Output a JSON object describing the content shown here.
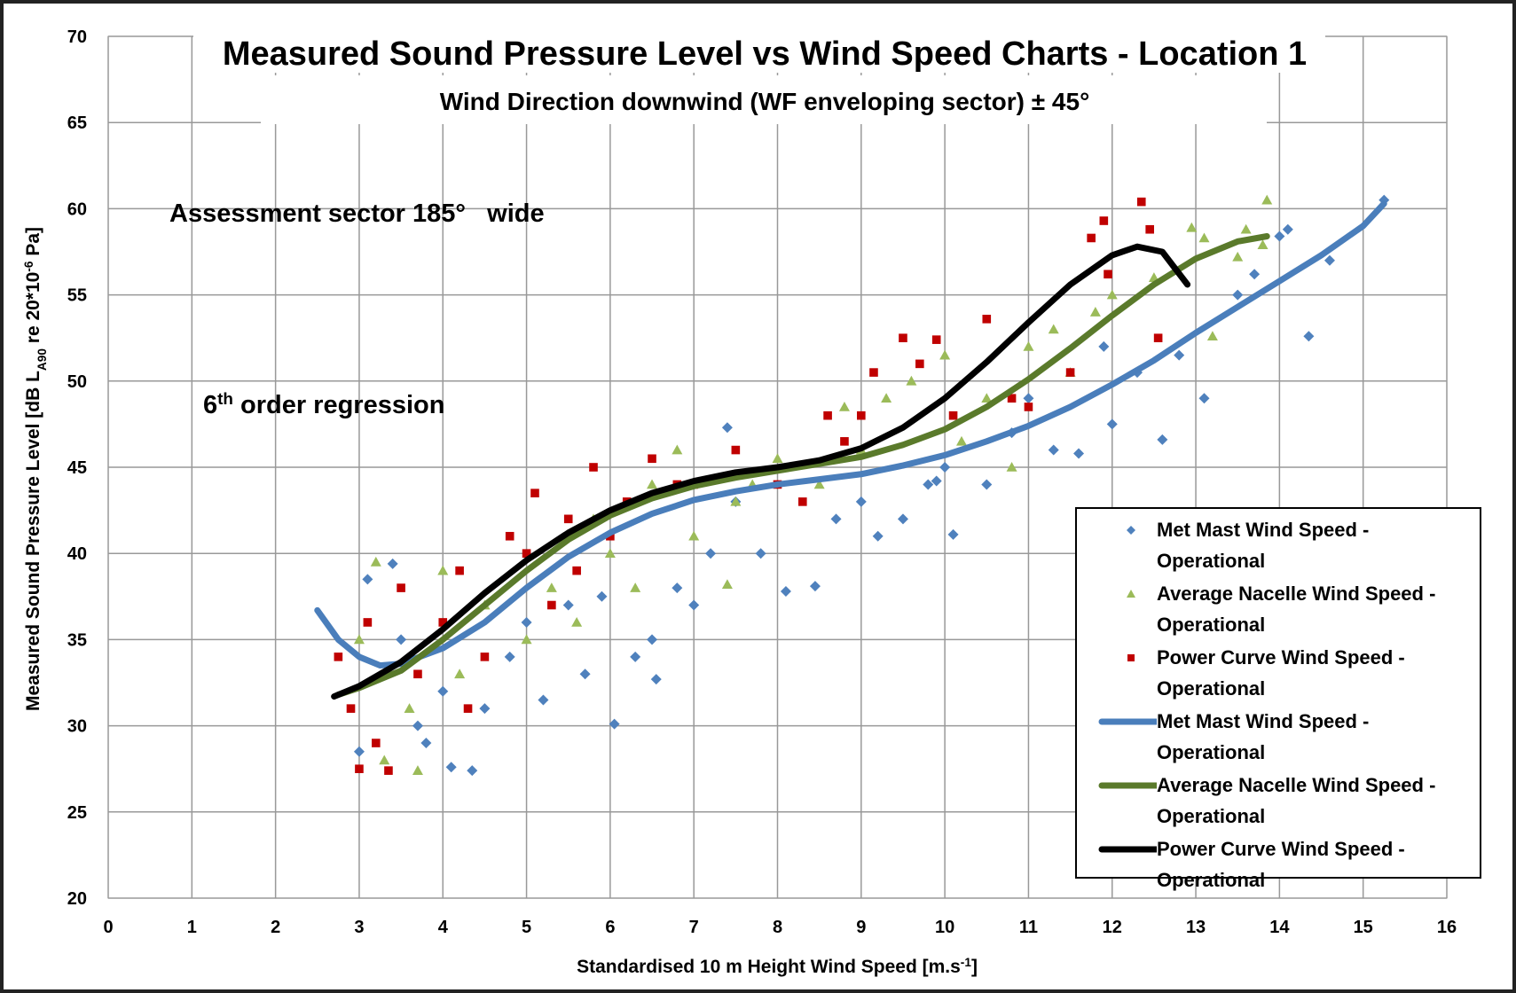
{
  "chart_data": {
    "type": "scatter",
    "title": "Measured Sound Pressure Level vs Wind Speed Charts - Location 1",
    "subtitle": "Wind Direction downwind (WF enveloping sector) ± 45°",
    "annotations": [
      "Assessment sector 185°   wide",
      [
        "6",
        "th",
        " order regression"
      ]
    ],
    "xlabel": [
      "Standardised 10 m Height Wind Speed [m.s",
      "-1",
      "]"
    ],
    "ylabel": [
      "Measured  Sound Pressure Level [dB L",
      "A90",
      " re 20*10",
      "-6",
      " Pa]"
    ],
    "xlim": [
      0,
      16
    ],
    "xticks": [
      0,
      1,
      2,
      3,
      4,
      5,
      6,
      7,
      8,
      9,
      10,
      11,
      12,
      13,
      14,
      15,
      16
    ],
    "ylim": [
      20,
      70
    ],
    "yticks": [
      20,
      25,
      30,
      35,
      40,
      45,
      50,
      55,
      60,
      65,
      70
    ],
    "grid": true,
    "legend": "lower right",
    "series": [
      {
        "name": "Met Mast Wind Speed - Operational",
        "kind": "marker",
        "marker": "diamond",
        "color": "#4f81bd",
        "x": [
          3,
          3.1,
          3.4,
          3.5,
          3.7,
          3.8,
          4,
          4.1,
          4.35,
          4.5,
          4.8,
          5,
          5.2,
          5.5,
          5.7,
          5.9,
          6.05,
          6.3,
          6.5,
          6.55,
          6.8,
          7,
          7.2,
          7.5,
          7.8,
          8.1,
          8.45,
          8.7,
          9,
          9.2,
          9.5,
          9.8,
          10,
          10.1,
          10.5,
          10.8,
          11,
          11.3,
          11.6,
          12,
          12.3,
          12.6,
          12.8,
          13.1,
          13.5,
          13.7,
          14,
          14.1,
          14.35,
          14.6,
          15.25,
          7.4,
          9.9,
          11.9
        ],
        "values": [
          28.5,
          38.5,
          39.4,
          35,
          30,
          29,
          32,
          27.6,
          27.4,
          31,
          34,
          36,
          31.5,
          37,
          33,
          37.5,
          30.1,
          34,
          35,
          32.7,
          38,
          37,
          40,
          43,
          40,
          37.8,
          38.1,
          42,
          43,
          41,
          42,
          44,
          45,
          41.1,
          44,
          47,
          49,
          46,
          45.8,
          47.5,
          50.5,
          46.6,
          51.5,
          49,
          55,
          56.2,
          58.4,
          58.8,
          52.6,
          57,
          60.5,
          47.3,
          44.2,
          52
        ]
      },
      {
        "name": "Average Nacelle Wind Speed - Operational",
        "kind": "marker",
        "marker": "triangle",
        "color": "#9bbb59",
        "x": [
          3,
          3.2,
          3.3,
          3.7,
          3.6,
          4,
          4.2,
          4.5,
          5,
          5.3,
          5.6,
          6,
          6.3,
          6.8,
          7,
          7.4,
          7.5,
          8,
          8.5,
          8.8,
          9,
          9.3,
          9.6,
          10,
          10.2,
          10.5,
          10.8,
          11,
          11.3,
          11.5,
          11.8,
          12,
          12.5,
          12.95,
          13.1,
          13.2,
          13.5,
          13.6,
          13.85,
          13.8,
          5.8,
          6.5,
          7.7
        ],
        "values": [
          35,
          39.5,
          28,
          27.4,
          31,
          39,
          33,
          37,
          35,
          38,
          36,
          40,
          38,
          46,
          41,
          38.2,
          43,
          45.5,
          44,
          48.5,
          46,
          49,
          50,
          51.5,
          46.5,
          49,
          45,
          52,
          53,
          50.5,
          54,
          55,
          56,
          58.9,
          58.3,
          52.6,
          57.2,
          58.8,
          60.5,
          57.9,
          42,
          44,
          44
        ]
      },
      {
        "name": "Power Curve Wind Speed - Operational",
        "kind": "marker",
        "marker": "square",
        "color": "#c00000",
        "x": [
          2.75,
          2.9,
          3,
          3.1,
          3.2,
          3.35,
          3.5,
          3.7,
          4,
          4.2,
          4.5,
          4.8,
          5,
          5.1,
          5.3,
          5.5,
          5.8,
          6,
          6.2,
          6.5,
          6.8,
          7,
          7.5,
          8,
          8.3,
          8.6,
          8.8,
          9,
          9.15,
          9.5,
          9.7,
          9.9,
          10.1,
          10.5,
          10.8,
          11,
          11.5,
          11.75,
          11.9,
          11.95,
          12.35,
          12.45,
          12.55,
          5.6,
          4.3
        ],
        "values": [
          34,
          31,
          27.5,
          36,
          29,
          27.4,
          38,
          33,
          36,
          39,
          34,
          41,
          40,
          43.5,
          37,
          42,
          45,
          41,
          43,
          45.5,
          44,
          44,
          46,
          44,
          43,
          48,
          46.5,
          48,
          50.5,
          52.5,
          51,
          52.4,
          48,
          53.6,
          49,
          48.5,
          50.5,
          58.3,
          59.3,
          56.2,
          60.4,
          58.8,
          52.5,
          39,
          31
        ]
      },
      {
        "name": "Met Mast Wind Speed - Operational",
        "kind": "line",
        "color": "#4a7ebb",
        "x": [
          2.5,
          2.75,
          3,
          3.25,
          3.5,
          4,
          4.5,
          5,
          5.5,
          6,
          6.5,
          7,
          7.5,
          8,
          8.5,
          9,
          9.5,
          10,
          10.5,
          11,
          11.5,
          12,
          12.5,
          13,
          13.5,
          14,
          14.5,
          15,
          15.25
        ],
        "values": [
          36.7,
          35,
          34,
          33.5,
          33.6,
          34.5,
          36,
          38,
          39.8,
          41.2,
          42.3,
          43.1,
          43.6,
          44,
          44.3,
          44.6,
          45.1,
          45.7,
          46.5,
          47.4,
          48.5,
          49.8,
          51.2,
          52.8,
          54.3,
          55.8,
          57.3,
          59,
          60.3
        ]
      },
      {
        "name": "Average Nacelle Wind Speed - Operational",
        "kind": "line",
        "color": "#5a7a2b",
        "x": [
          2.75,
          3,
          3.5,
          4,
          4.5,
          5,
          5.5,
          6,
          6.5,
          7,
          7.5,
          8,
          8.5,
          9,
          9.5,
          10,
          10.5,
          11,
          11.5,
          12,
          12.5,
          13,
          13.5,
          13.85
        ],
        "values": [
          31.8,
          32.2,
          33.2,
          35,
          37,
          39,
          40.8,
          42.2,
          43.2,
          43.9,
          44.4,
          44.8,
          45.2,
          45.6,
          46.3,
          47.2,
          48.5,
          50.1,
          51.9,
          53.8,
          55.6,
          57.1,
          58.1,
          58.4
        ]
      },
      {
        "name": "Power Curve Wind Speed - Operational",
        "kind": "line",
        "color": "#000000",
        "x": [
          2.7,
          3,
          3.5,
          4,
          4.5,
          5,
          5.5,
          6,
          6.5,
          7,
          7.5,
          8,
          8.5,
          9,
          9.5,
          10,
          10.5,
          11,
          11.5,
          12,
          12.3,
          12.6,
          12.9
        ],
        "values": [
          31.7,
          32.3,
          33.7,
          35.6,
          37.7,
          39.6,
          41.2,
          42.5,
          43.5,
          44.2,
          44.7,
          45.0,
          45.4,
          46.1,
          47.3,
          49.0,
          51.1,
          53.4,
          55.6,
          57.3,
          57.8,
          57.5,
          55.6
        ]
      }
    ]
  }
}
